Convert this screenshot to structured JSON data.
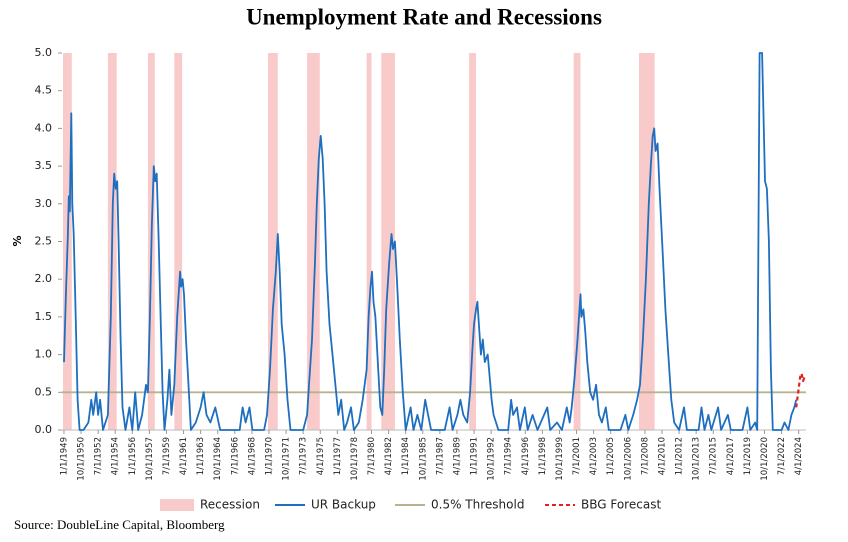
{
  "chart_data": {
    "type": "line",
    "title": "Unemployment Rate and Recessions",
    "y_label": "%",
    "source": "Source: DoubleLine Capital, Bloomberg",
    "xlim": [
      1948.8,
      2025.0
    ],
    "ylim": [
      0,
      5
    ],
    "xticks": [
      {
        "value": 1949,
        "label": "1/1/1949"
      },
      {
        "value": 1950.75,
        "label": "10/1/1950"
      },
      {
        "value": 1952.5,
        "label": "7/1/1952"
      },
      {
        "value": 1954.25,
        "label": "4/1/1954"
      },
      {
        "value": 1956,
        "label": "1/1/1956"
      },
      {
        "value": 1957.75,
        "label": "10/1/1957"
      },
      {
        "value": 1959.5,
        "label": "7/1/1959"
      },
      {
        "value": 1961.25,
        "label": "4/1/1961"
      },
      {
        "value": 1963,
        "label": "1/1/1963"
      },
      {
        "value": 1964.75,
        "label": "10/1/1964"
      },
      {
        "value": 1966.5,
        "label": "7/1/1966"
      },
      {
        "value": 1968.25,
        "label": "4/1/1968"
      },
      {
        "value": 1970,
        "label": "1/1/1970"
      },
      {
        "value": 1971.75,
        "label": "10/1/1971"
      },
      {
        "value": 1973.5,
        "label": "7/1/1973"
      },
      {
        "value": 1975.25,
        "label": "4/1/1975"
      },
      {
        "value": 1977,
        "label": "1/1/1977"
      },
      {
        "value": 1978.75,
        "label": "10/1/1978"
      },
      {
        "value": 1980.5,
        "label": "7/1/1980"
      },
      {
        "value": 1982.25,
        "label": "4/1/1982"
      },
      {
        "value": 1984,
        "label": "1/1/1984"
      },
      {
        "value": 1985.75,
        "label": "10/1/1985"
      },
      {
        "value": 1987.5,
        "label": "7/1/1987"
      },
      {
        "value": 1989.25,
        "label": "4/1/1989"
      },
      {
        "value": 1991,
        "label": "1/1/1991"
      },
      {
        "value": 1992.75,
        "label": "10/1/1992"
      },
      {
        "value": 1994.5,
        "label": "7/1/1994"
      },
      {
        "value": 1996.25,
        "label": "4/1/1996"
      },
      {
        "value": 1998,
        "label": "1/1/1998"
      },
      {
        "value": 1999.75,
        "label": "10/1/1999"
      },
      {
        "value": 2001.5,
        "label": "7/1/2001"
      },
      {
        "value": 2003.25,
        "label": "4/1/2003"
      },
      {
        "value": 2005,
        "label": "1/1/2005"
      },
      {
        "value": 2006.75,
        "label": "10/1/2006"
      },
      {
        "value": 2008.5,
        "label": "7/1/2008"
      },
      {
        "value": 2010.25,
        "label": "4/1/2010"
      },
      {
        "value": 2012,
        "label": "1/1/2012"
      },
      {
        "value": 2013.75,
        "label": "10/1/2013"
      },
      {
        "value": 2015.5,
        "label": "7/1/2015"
      },
      {
        "value": 2017.25,
        "label": "4/1/2017"
      },
      {
        "value": 2019,
        "label": "1/1/2019"
      },
      {
        "value": 2020.75,
        "label": "10/1/2020"
      },
      {
        "value": 2022.5,
        "label": "7/1/2022"
      },
      {
        "value": 2024.25,
        "label": "4/1/2024"
      }
    ],
    "yticks": [
      {
        "value": 0,
        "label": "0.0"
      },
      0.5,
      {
        "value": 1,
        "label": "1.0"
      },
      1.5,
      {
        "value": 2,
        "label": "2.0"
      },
      2.5,
      {
        "value": 3,
        "label": "3.0"
      },
      3.5,
      {
        "value": 4,
        "label": "4.0"
      },
      4.5,
      {
        "value": 5,
        "label": "5.0"
      }
    ],
    "recession": {
      "name": "Recession",
      "color": "#f9caca",
      "periods": [
        [
          1948.9,
          1949.8
        ],
        [
          1953.5,
          1954.4
        ],
        [
          1957.6,
          1958.3
        ],
        [
          1960.3,
          1961.1
        ],
        [
          1969.9,
          1970.9
        ],
        [
          1973.9,
          1975.2
        ],
        [
          1980.0,
          1980.5
        ],
        [
          1981.5,
          1982.9
        ],
        [
          1990.5,
          1991.2
        ],
        [
          2001.2,
          2001.9
        ],
        [
          2007.9,
          2009.5
        ]
      ]
    },
    "threshold": {
      "name": "0.5% Threshold",
      "value": 0.5,
      "color": "#b8b291"
    },
    "series": [
      {
        "name": "UR Backup",
        "color": "#1f6fc0",
        "dashed": false,
        "x": [
          1949.0,
          1949.2,
          1949.4,
          1949.5,
          1949.6,
          1949.75,
          1949.85,
          1950.0,
          1950.2,
          1950.4,
          1950.6,
          1951.0,
          1951.5,
          1951.8,
          1952.0,
          1952.3,
          1952.5,
          1952.7,
          1953.0,
          1953.5,
          1953.8,
          1954.0,
          1954.15,
          1954.3,
          1954.45,
          1954.6,
          1954.8,
          1955.0,
          1955.3,
          1955.7,
          1956.0,
          1956.3,
          1956.6,
          1957.0,
          1957.4,
          1957.6,
          1957.8,
          1958.0,
          1958.2,
          1958.35,
          1958.5,
          1958.7,
          1958.9,
          1959.1,
          1959.3,
          1959.6,
          1959.8,
          1960.0,
          1960.3,
          1960.6,
          1960.9,
          1961.0,
          1961.15,
          1961.3,
          1961.5,
          1961.8,
          1962.0,
          1962.5,
          1963.0,
          1963.3,
          1963.6,
          1964.0,
          1964.5,
          1965.0,
          1967.0,
          1967.3,
          1967.6,
          1968.0,
          1968.3,
          1969.5,
          1969.8,
          1970.1,
          1970.4,
          1970.7,
          1970.9,
          1971.1,
          1971.3,
          1971.6,
          1971.9,
          1972.2,
          1973.5,
          1973.9,
          1974.1,
          1974.4,
          1974.7,
          1974.9,
          1975.1,
          1975.3,
          1975.5,
          1975.7,
          1975.9,
          1976.2,
          1976.5,
          1976.8,
          1977.1,
          1977.4,
          1977.7,
          1978.0,
          1978.4,
          1978.7,
          1979.2,
          1979.6,
          1980.0,
          1980.2,
          1980.4,
          1980.55,
          1980.7,
          1980.9,
          1981.1,
          1981.4,
          1981.6,
          1981.8,
          1982.0,
          1982.3,
          1982.55,
          1982.7,
          1982.9,
          1983.1,
          1983.4,
          1983.7,
          1984.0,
          1984.5,
          1984.8,
          1985.2,
          1985.6,
          1986.0,
          1986.3,
          1986.6,
          1988.0,
          1988.5,
          1988.8,
          1989.3,
          1989.6,
          1989.9,
          1990.3,
          1990.6,
          1990.8,
          1991.0,
          1991.2,
          1991.35,
          1991.5,
          1991.7,
          1991.9,
          1992.1,
          1992.4,
          1992.6,
          1992.8,
          1993.0,
          1993.5,
          1994.5,
          1994.8,
          1995.0,
          1995.4,
          1995.7,
          1996.2,
          1996.5,
          1997.0,
          1997.5,
          1998.5,
          1998.8,
          1999.5,
          2000.0,
          2000.5,
          2000.8,
          2001.0,
          2001.3,
          2001.6,
          2001.8,
          2001.9,
          2002.0,
          2002.2,
          2002.4,
          2002.6,
          2002.9,
          2003.2,
          2003.5,
          2003.8,
          2004.1,
          2004.5,
          2004.8,
          2006.0,
          2006.5,
          2006.8,
          2007.3,
          2007.7,
          2008.0,
          2008.3,
          2008.6,
          2008.9,
          2009.1,
          2009.3,
          2009.45,
          2009.6,
          2009.8,
          2010.0,
          2010.3,
          2010.6,
          2010.9,
          2011.2,
          2011.5,
          2012.0,
          2012.5,
          2012.8,
          2014.0,
          2014.3,
          2014.6,
          2015.0,
          2015.3,
          2016.0,
          2016.3,
          2017.0,
          2017.3,
          2018.5,
          2019.0,
          2019.3,
          2019.8,
          2020.0,
          2020.25,
          2020.5,
          2020.8,
          2021.0,
          2021.2,
          2021.4,
          2021.6,
          2022.5,
          2022.8,
          2023.2,
          2023.5,
          2023.8,
          2024.0
        ],
        "values": [
          0.9,
          1.8,
          2.6,
          3.1,
          2.9,
          4.2,
          3.0,
          2.6,
          1.5,
          0.4,
          0.0,
          0.0,
          0.1,
          0.4,
          0.2,
          0.5,
          0.2,
          0.4,
          0.0,
          0.2,
          1.5,
          3.0,
          3.4,
          3.2,
          3.3,
          2.5,
          1.2,
          0.3,
          0.0,
          0.3,
          0.0,
          0.5,
          0.0,
          0.2,
          0.6,
          0.5,
          1.5,
          2.7,
          3.5,
          3.3,
          3.4,
          2.5,
          1.5,
          0.5,
          0.0,
          0.4,
          0.8,
          0.2,
          0.6,
          1.5,
          2.1,
          1.9,
          2.0,
          1.8,
          1.2,
          0.5,
          0.0,
          0.1,
          0.3,
          0.5,
          0.2,
          0.1,
          0.3,
          0.0,
          0.0,
          0.3,
          0.1,
          0.3,
          0.0,
          0.0,
          0.2,
          0.8,
          1.6,
          2.1,
          2.6,
          2.1,
          1.4,
          1.0,
          0.4,
          0.0,
          0.0,
          0.2,
          0.6,
          1.2,
          2.2,
          3.0,
          3.6,
          3.9,
          3.6,
          3.0,
          2.1,
          1.4,
          1.0,
          0.6,
          0.2,
          0.4,
          0.0,
          0.1,
          0.3,
          0.0,
          0.1,
          0.4,
          0.8,
          1.5,
          1.9,
          2.1,
          1.7,
          1.5,
          1.0,
          0.3,
          0.2,
          0.8,
          1.6,
          2.2,
          2.6,
          2.4,
          2.5,
          2.0,
          1.2,
          0.5,
          0.0,
          0.3,
          0.0,
          0.2,
          0.0,
          0.4,
          0.2,
          0.0,
          0.0,
          0.3,
          0.0,
          0.2,
          0.4,
          0.2,
          0.1,
          0.5,
          1.0,
          1.4,
          1.6,
          1.7,
          1.4,
          1.0,
          1.2,
          0.9,
          1.0,
          0.7,
          0.4,
          0.2,
          0.0,
          0.0,
          0.4,
          0.2,
          0.3,
          0.0,
          0.3,
          0.0,
          0.2,
          0.0,
          0.3,
          0.0,
          0.1,
          0.0,
          0.3,
          0.1,
          0.3,
          0.7,
          1.2,
          1.6,
          1.8,
          1.5,
          1.6,
          1.3,
          0.9,
          0.5,
          0.4,
          0.6,
          0.2,
          0.1,
          0.3,
          0.0,
          0.0,
          0.2,
          0.0,
          0.2,
          0.4,
          0.6,
          1.2,
          2.0,
          3.0,
          3.5,
          3.9,
          4.0,
          3.7,
          3.8,
          3.2,
          2.4,
          1.6,
          1.0,
          0.4,
          0.1,
          0.0,
          0.3,
          0.0,
          0.0,
          0.3,
          0.0,
          0.2,
          0.0,
          0.3,
          0.0,
          0.2,
          0.0,
          0.0,
          0.3,
          0.0,
          0.1,
          0.0,
          5.0,
          5.0,
          3.3,
          3.2,
          2.5,
          0.8,
          0.0,
          0.0,
          0.1,
          0.0,
          0.2,
          0.3,
          0.4
        ]
      },
      {
        "name": "BBG Forecast",
        "color": "#e0231c",
        "dashed": true,
        "x": [
          2024.0,
          2024.2,
          2024.4,
          2024.55,
          2024.7,
          2024.85
        ],
        "values": [
          0.3,
          0.5,
          0.7,
          0.75,
          0.65,
          0.7
        ]
      }
    ]
  }
}
